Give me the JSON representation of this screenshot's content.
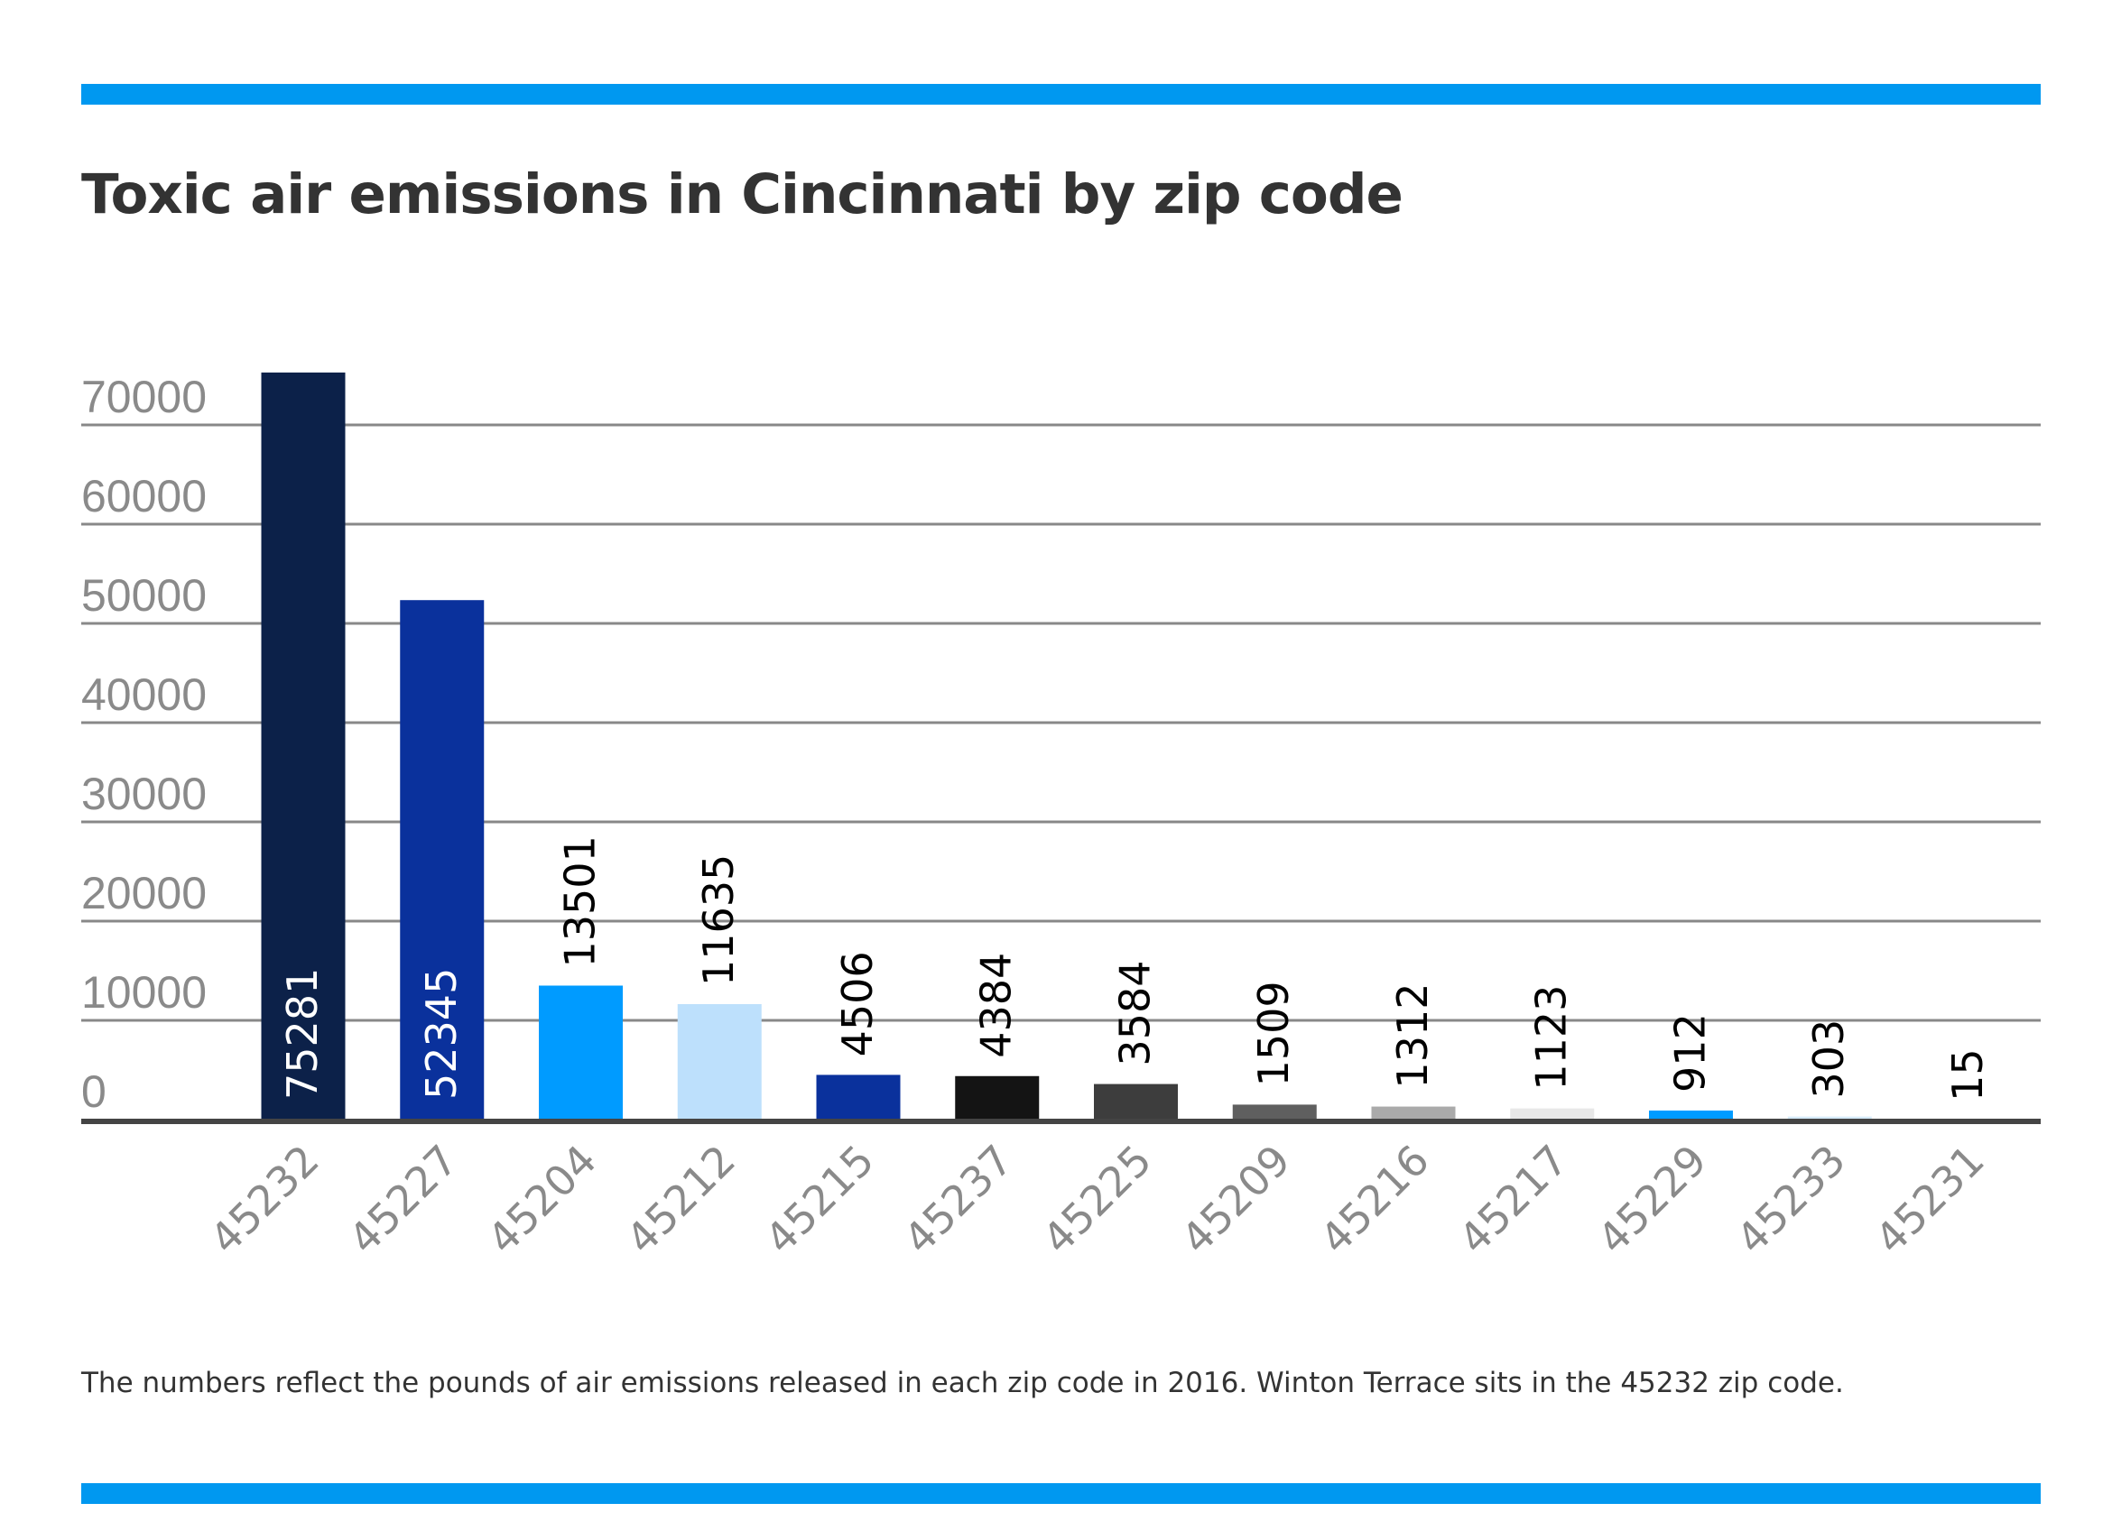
{
  "colors": {
    "rule": "#0098f0",
    "grid": "#888888",
    "axis": "#444444"
  },
  "chart_data": {
    "type": "bar",
    "title": "Toxic air emissions in Cincinnati by zip code",
    "xlabel": "",
    "ylabel": "",
    "ylim": [
      0,
      75281
    ],
    "yticks": [
      "0",
      "10000",
      "20000",
      "30000",
      "40000",
      "50000",
      "60000",
      "70000"
    ],
    "grid": true,
    "categories": [
      "45232",
      "45227",
      "45204",
      "45212",
      "45215",
      "45237",
      "45225",
      "45209",
      "45216",
      "45217",
      "45229",
      "45233",
      "45231"
    ],
    "values": [
      75281,
      52345,
      13501,
      11635,
      4506,
      4384,
      3584,
      1509,
      1312,
      1123,
      912,
      303,
      15
    ],
    "bar_colors": [
      "#0c2149",
      "#0a319c",
      "#009bff",
      "#bde0fc",
      "#0a319c",
      "#141414",
      "#3d3d3d",
      "#5f5f5f",
      "#aaaaaa",
      "#e8e8e8",
      "#009bff",
      "#d6ebfa",
      "#cccccc"
    ],
    "data_labels": [
      "75281",
      "52345",
      "13501",
      "11635",
      "4506",
      "4384",
      "3584",
      "1509",
      "1312",
      "1123",
      "912",
      "303",
      "15"
    ]
  },
  "footnote": "The numbers reflect the pounds of air emissions released in each zip code in 2016. Winton Terrace sits in the 45232 zip code."
}
